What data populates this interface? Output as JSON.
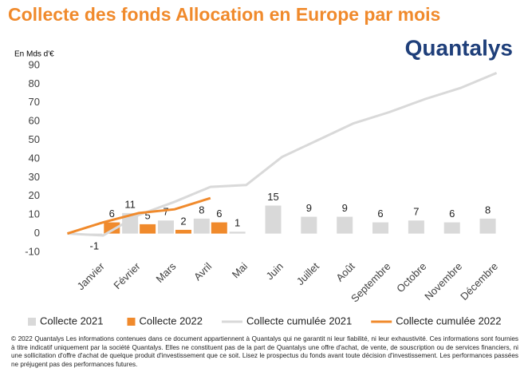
{
  "chart_data": {
    "type": "bar",
    "title": "Collecte des fonds Allocation en Europe par mois",
    "logo": "Quantalys",
    "y_axis_label": "En Mds d'€",
    "categories": [
      null,
      "Janvier",
      "Février",
      "Mars",
      "Avril",
      "Mai",
      "Juin",
      "Juillet",
      "Août",
      "Septembre",
      "Octobre",
      "Novembre",
      "Décembre"
    ],
    "series": [
      {
        "name": "Collecte 2021",
        "color": "#d9d9d9",
        "kind": "bar",
        "values": [
          null,
          -1,
          11,
          7,
          8,
          1,
          15,
          9,
          9,
          6,
          7,
          6,
          8
        ]
      },
      {
        "name": "Collecte 2022",
        "color": "#f08a2c",
        "kind": "bar",
        "values": [
          null,
          6,
          5,
          2,
          6,
          null,
          null,
          null,
          null,
          null,
          null,
          null,
          null
        ]
      },
      {
        "name": "Collecte cumulée 2021",
        "color": "#d9d9d9",
        "kind": "line",
        "values": [
          0,
          -1,
          10,
          17,
          25,
          26,
          41,
          50,
          59,
          65,
          72,
          78,
          86
        ]
      },
      {
        "name": "Collecte cumulée 2022",
        "color": "#f08a2c",
        "kind": "line",
        "values": [
          0,
          6,
          11,
          13,
          19,
          null,
          null,
          null,
          null,
          null,
          null,
          null,
          null
        ]
      }
    ],
    "ylim": [
      -10,
      90
    ],
    "yticks": [
      -10,
      0,
      10,
      20,
      30,
      40,
      50,
      60,
      70,
      80,
      90
    ],
    "grid": false,
    "legend": "bottom",
    "footer": "© 2022 Quantalys Les informations contenues dans ce document appartiennent à Quantalys qui ne garantit ni leur fiabilité, ni leur exhaustivité. Ces informations sont fournies à titre indicatif uniquement par la société Quantalys. Elles ne constituent pas de la part de Quantalys une offre d'achat, de vente, de souscription ou de services financiers, ni une sollicitation d'offre d'achat de quelque produit d'investissement que ce soit. Lisez le prospectus du fonds avant toute décision d'investissement. Les performances passées ne préjugent pas des performances futures."
  }
}
